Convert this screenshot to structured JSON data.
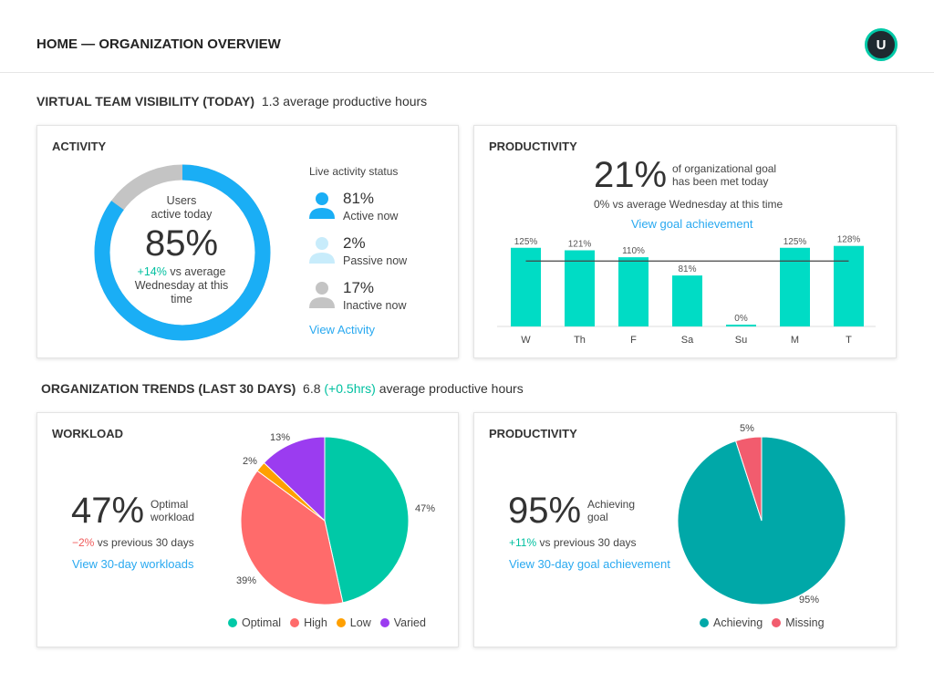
{
  "header": {
    "title": "HOME — ORGANIZATION OVERVIEW",
    "avatar_initial": "U"
  },
  "visibility": {
    "title": "VIRTUAL TEAM VISIBILITY (TODAY)",
    "subtitle": "1.3 average productive hours"
  },
  "activity": {
    "title": "ACTIVITY",
    "donut": {
      "label1": "Users",
      "label2": "active today",
      "value": "85%",
      "active_fraction": 0.85,
      "delta": "+14%",
      "delta_text": "vs average",
      "delta_text2": "Wednesday at this",
      "delta_text3": "time",
      "colors": {
        "active": "#1aaef5",
        "rest": "#c4c4c4"
      }
    },
    "status_title": "Live activity status",
    "statuses": [
      {
        "icon": "user-icon",
        "value": "81%",
        "label": "Active now",
        "color": "#1aaef5"
      },
      {
        "icon": "user-icon",
        "value": "2%",
        "label": "Passive now",
        "color": "#c8ecfb"
      },
      {
        "icon": "user-icon",
        "value": "17%",
        "label": "Inactive now",
        "color": "#c4c4c4"
      }
    ],
    "link": "View Activity"
  },
  "productivity_today": {
    "title": "PRODUCTIVITY",
    "value": "21%",
    "desc1": "of organizational goal",
    "desc2": "has been met today",
    "compare": "0% vs average Wednesday at this time",
    "link": "View goal achievement"
  },
  "chart_data": [
    {
      "type": "bar",
      "categories": [
        "W",
        "Th",
        "F",
        "Sa",
        "Su",
        "M",
        "T"
      ],
      "values": [
        125,
        121,
        110,
        81,
        0,
        125,
        128
      ],
      "data_labels": [
        "125%",
        "121%",
        "110%",
        "81%",
        "0%",
        "125%",
        "128%"
      ],
      "reference_line": 104,
      "ylim": [
        0,
        130
      ],
      "color": "#00dcc5",
      "grid": false
    },
    {
      "type": "pie",
      "categories": [
        "Optimal",
        "High",
        "Low",
        "Varied"
      ],
      "values": [
        47,
        39,
        2,
        13
      ],
      "data_labels": [
        "47%",
        "39%",
        "2%",
        "13%"
      ],
      "colors": [
        "#00c9a7",
        "#ff6b6b",
        "#ffa000",
        "#9b3cf0"
      ],
      "legend": "bottom"
    },
    {
      "type": "pie",
      "categories": [
        "Achieving",
        "Missing"
      ],
      "values": [
        95,
        5
      ],
      "data_labels": [
        "95%",
        "5%"
      ],
      "colors": [
        "#00a8a8",
        "#f25c6e"
      ],
      "legend": "bottom"
    }
  ],
  "trends": {
    "title": "ORGANIZATION TRENDS (LAST 30 DAYS)",
    "hours": "6.8",
    "delta": "(+0.5hrs)",
    "subtitle": "average productive hours"
  },
  "workload": {
    "title": "WORKLOAD",
    "value": "47%",
    "desc1": "Optimal",
    "desc2": "workload",
    "delta": "−2%",
    "delta_text": "vs previous 30 days",
    "link": "View 30-day workloads"
  },
  "productivity_trend": {
    "title": "PRODUCTIVITY",
    "value": "95%",
    "desc1": "Achieving",
    "desc2": "goal",
    "delta": "+11%",
    "delta_text": "vs previous 30 days",
    "link": "View 30-day goal achievement"
  }
}
